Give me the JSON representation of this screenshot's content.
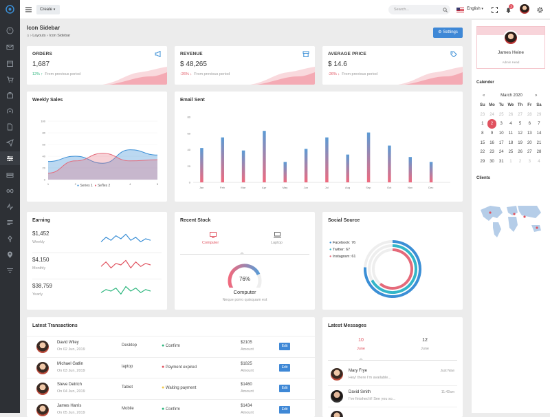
{
  "topbar": {
    "create_label": "Create",
    "search_placeholder": "Search...",
    "language": "English",
    "notif_count": "3"
  },
  "page": {
    "title": "Icon Sidebar",
    "breadcrumb": [
      "Layouts",
      "Icon Sidebar"
    ],
    "settings_label": "Settings"
  },
  "stats": [
    {
      "title": "ORDERS",
      "value": "1,687",
      "change": "12%",
      "note": "From previous period",
      "change_color": "#2cb67d"
    },
    {
      "title": "REVENUE",
      "value": "$ 48,265",
      "change": "-26%",
      "note": "From previous period",
      "change_color": "#e0525f"
    },
    {
      "title": "AVERAGE PRICE",
      "value": "$ 14.6",
      "change": "-26%",
      "note": "From previous period",
      "change_color": "#e0525f"
    }
  ],
  "weekly": {
    "title": "Weekly Sales",
    "legend": [
      "Series 1",
      "Series 2"
    ]
  },
  "email": {
    "title": "Email Sent"
  },
  "earning": {
    "title": "Earning",
    "rows": [
      {
        "value": "$1,452",
        "period": "Weekly"
      },
      {
        "value": "$4,150",
        "period": "Monthly"
      },
      {
        "value": "$38,759",
        "period": "Yearly"
      }
    ]
  },
  "stock": {
    "title": "Recent Stock",
    "tabs": [
      "Computer",
      "Laptop"
    ],
    "percent": "76%",
    "name": "Computer",
    "desc": "Neque porro quisquam est"
  },
  "social": {
    "title": "Social Source",
    "items": [
      {
        "label": "Facebook: 76",
        "color": "#3b8fd6"
      },
      {
        "label": "Twitter: 67",
        "color": "#33b6c9"
      },
      {
        "label": "Instagram: 61",
        "color": "#e56a7a"
      }
    ]
  },
  "transactions": {
    "title": "Latest Transactions",
    "rows": [
      {
        "name": "David Wiley",
        "date": "On 02 Jun, 2019",
        "device": "Desktop",
        "status": "Confirm",
        "status_color": "#2cb67d",
        "amount": "$2105",
        "amount_label": "Amount",
        "action": "Edit"
      },
      {
        "name": "Michael Gatlin",
        "date": "On 03 Jun, 2019",
        "device": "laptop",
        "status": "Payment expired",
        "status_color": "#e0525f",
        "amount": "$1825",
        "amount_label": "Amount",
        "action": "Edit"
      },
      {
        "name": "Steve Detrich",
        "date": "On 04 Jun, 2019",
        "device": "Tablet",
        "status": "Waiting payment",
        "status_color": "#f2c94c",
        "amount": "$1460",
        "amount_label": "Amount",
        "action": "Edit"
      },
      {
        "name": "James Harris",
        "date": "On 05 Jun, 2019",
        "device": "Mobile",
        "status": "Confirm",
        "status_color": "#2cb67d",
        "amount": "$1434",
        "amount_label": "Amount",
        "action": "Edit"
      }
    ]
  },
  "messages": {
    "title": "Latest Messages",
    "tabs": [
      {
        "num": "10",
        "label": "June"
      },
      {
        "num": "12",
        "label": "June"
      }
    ],
    "rows": [
      {
        "name": "Mary Frye",
        "text": "Hey! there I'm available...",
        "time": "Just Now"
      },
      {
        "name": "David Smith",
        "text": "I've finished it! See you so...",
        "time": "11:42am"
      }
    ]
  },
  "profile": {
    "name": "James Heine",
    "role": "Admin Head"
  },
  "calendar": {
    "title": "Calender",
    "month": "March 2020",
    "weekdays": [
      "Su",
      "Mo",
      "Tu",
      "We",
      "Th",
      "Fr",
      "Sa"
    ],
    "today": "2",
    "weeks": [
      [
        "23",
        "24",
        "25",
        "26",
        "27",
        "28",
        "29"
      ],
      [
        "1",
        "2",
        "3",
        "4",
        "5",
        "6",
        "7"
      ],
      [
        "8",
        "9",
        "10",
        "11",
        "12",
        "13",
        "14"
      ],
      [
        "15",
        "16",
        "17",
        "18",
        "19",
        "20",
        "21"
      ],
      [
        "22",
        "23",
        "24",
        "25",
        "26",
        "27",
        "28"
      ],
      [
        "29",
        "30",
        "31",
        "1",
        "2",
        "3",
        "4"
      ]
    ]
  },
  "clients": {
    "title": "Clients"
  },
  "chart_data": [
    {
      "type": "area",
      "title": "Weekly Sales",
      "x": [
        1,
        2,
        3,
        4,
        5
      ],
      "ylim": [
        0,
        100
      ],
      "yticks": [
        0,
        20,
        40,
        60,
        80,
        100
      ],
      "series": [
        {
          "name": "Series 1",
          "values": [
            31,
            40,
            28,
            51,
            42
          ],
          "color": "#3b8fd6"
        },
        {
          "name": "Series 2",
          "values": [
            11,
            32,
            45,
            32,
            34
          ],
          "color": "#e56a7a"
        }
      ]
    },
    {
      "type": "bar",
      "title": "Email Sent",
      "categories": [
        "Jan",
        "Feb",
        "Mar",
        "Apr",
        "May",
        "Jun",
        "Jul",
        "Aug",
        "Sep",
        "Oct",
        "Nov",
        "Dec"
      ],
      "values": [
        42,
        55,
        39,
        63,
        25,
        41,
        55,
        34,
        61,
        45,
        31,
        25
      ],
      "ylim": [
        0,
        80
      ],
      "yticks": [
        0,
        20,
        40,
        60,
        80
      ]
    },
    {
      "type": "line",
      "title": "Earning",
      "series": [
        {
          "name": "Weekly",
          "values": [
            3,
            6,
            4,
            7,
            5,
            8,
            4,
            6,
            3,
            5,
            4
          ],
          "color": "#3b8fd6"
        },
        {
          "name": "Monthly",
          "values": [
            4,
            7,
            3,
            6,
            5,
            8,
            3,
            7,
            4,
            6,
            5
          ],
          "color": "#e0525f"
        },
        {
          "name": "Yearly",
          "values": [
            4,
            6,
            5,
            7,
            3,
            8,
            5,
            7,
            4,
            6,
            5
          ],
          "color": "#2cb67d"
        }
      ]
    },
    {
      "type": "gauge",
      "title": "Recent Stock",
      "value": 76
    },
    {
      "type": "radial",
      "title": "Social Source",
      "series": [
        {
          "name": "Facebook",
          "value": 76
        },
        {
          "name": "Twitter",
          "value": 67
        },
        {
          "name": "Instagram",
          "value": 61
        }
      ]
    }
  ]
}
